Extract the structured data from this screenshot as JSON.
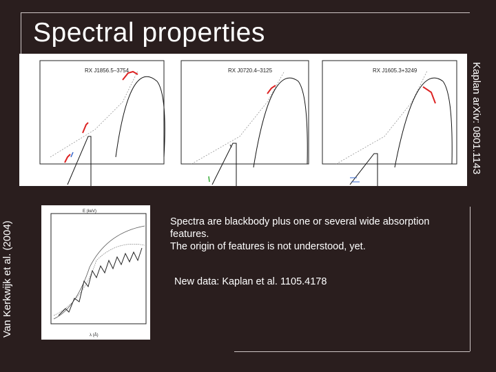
{
  "slide": {
    "title": "Spectral properties",
    "caption_left": "Van Kerkwijk et al. (2004)",
    "caption_right": "Kaplan arXiv: 0801.1143",
    "text_line1": "Spectra are blackbody plus one or several wide absorption features.",
    "text_line2": "The origin of features is not understood, yet.",
    "text_newdata": "New data: Kaplan et al. 1105.4178"
  },
  "figures": {
    "top": {
      "plots": [
        {
          "label": "RX J1856.5–3754"
        },
        {
          "label": "RX J0720.4–3125"
        },
        {
          "label": "RX J1605.3+3249"
        }
      ]
    },
    "bottom": {
      "top_axis": "E (keV)",
      "x_axis": "λ (Å)"
    }
  }
}
